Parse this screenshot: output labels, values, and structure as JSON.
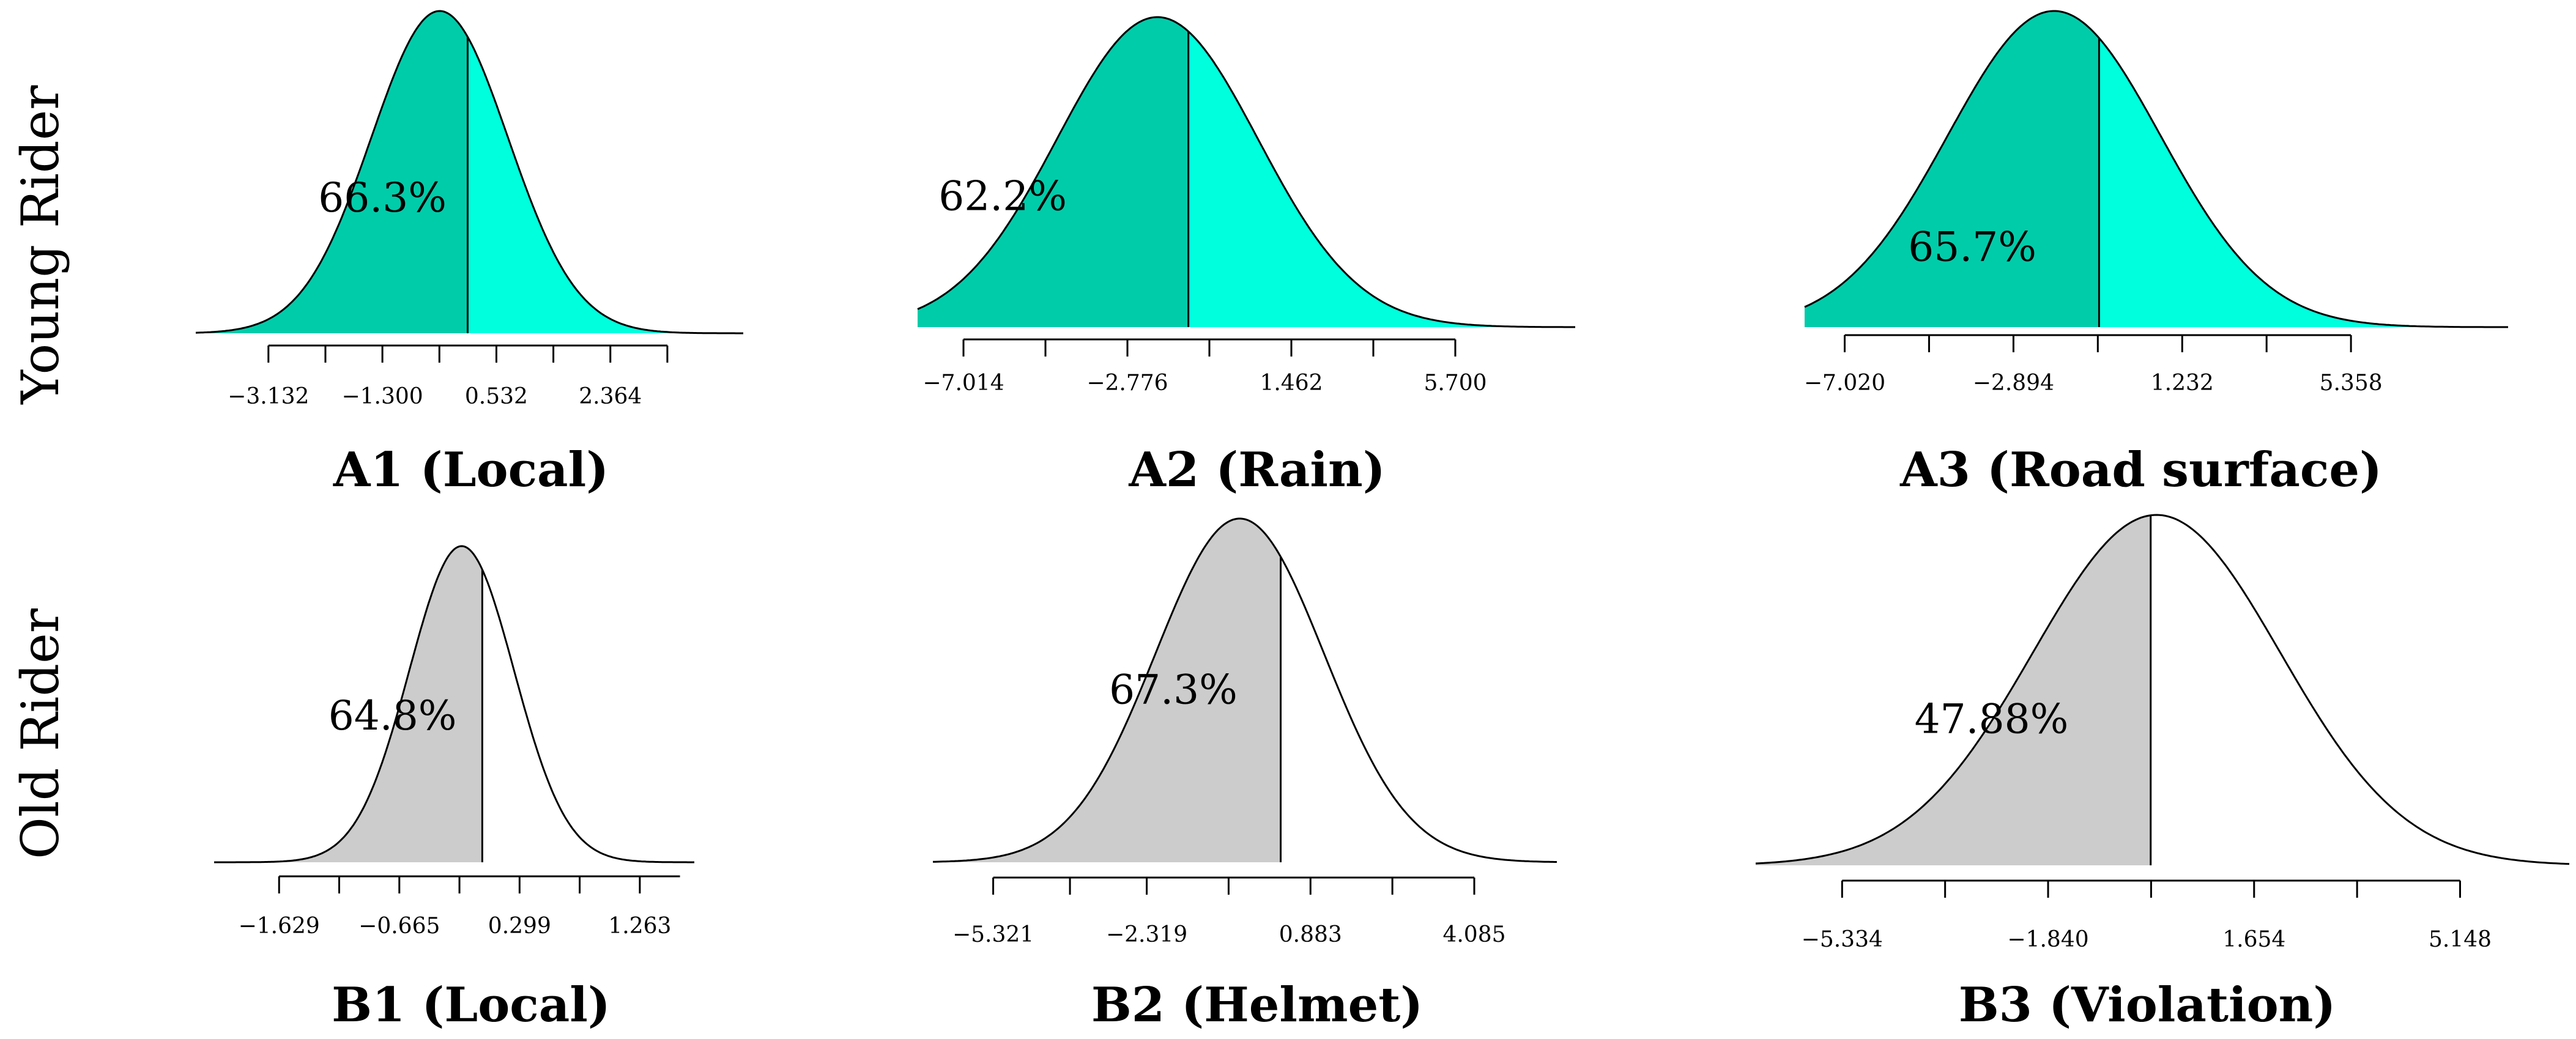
{
  "chart_data": [
    {
      "type": "area",
      "id": "A1",
      "row": "Young Rider",
      "title": "A1 (Local)",
      "distribution": "normal",
      "mean": -0.38,
      "sd": 1.1,
      "xlim": [
        -4.3,
        4.5
      ],
      "axis_range": [
        -3.132,
        3.28
      ],
      "ticks": [
        -3.132,
        -1.3,
        0.532,
        2.364
      ],
      "tick_labels": [
        "−3.132",
        "−1.300",
        "0.532",
        "2.364"
      ],
      "minor_ticks": [
        -2.216,
        -0.384,
        1.448,
        3.28
      ],
      "cutoff": 0.07,
      "shaded_percent": 66.3,
      "shaded_label": "66.3%",
      "label_x": -1.3,
      "label_y_frac": 0.18,
      "theme": "young"
    },
    {
      "type": "area",
      "id": "A2",
      "row": "Young Rider",
      "title": "A2 (Rain)",
      "distribution": "normal",
      "mean": -2.0,
      "sd": 2.6,
      "xlim": [
        -8.2,
        8.8
      ],
      "axis_range": [
        -7.014,
        5.7
      ],
      "ticks": [
        -7.014,
        -2.776,
        1.462,
        5.7
      ],
      "tick_labels": [
        "−7.014",
        "−2.776",
        "1.462",
        "5.700"
      ],
      "minor_ticks": [
        -4.895,
        -0.657,
        3.581
      ],
      "cutoff": -1.2,
      "shaded_percent": 62.2,
      "shaded_label": "62.2%",
      "label_x": -6.0,
      "label_y_frac": 0.18,
      "theme": "young"
    },
    {
      "type": "area",
      "id": "A3",
      "row": "Young Rider",
      "title": "A3 (Road surface)",
      "distribution": "normal",
      "mean": -1.9,
      "sd": 2.6,
      "xlim": [
        -8.0,
        9.2
      ],
      "axis_range": [
        -7.02,
        5.358
      ],
      "ticks": [
        -7.02,
        -2.894,
        1.232,
        5.358
      ],
      "tick_labels": [
        "−7.020",
        "−2.894",
        "1.232",
        "5.358"
      ],
      "minor_ticks": [
        -4.957,
        -0.831,
        3.295
      ],
      "cutoff": -0.8,
      "shaded_percent": 65.7,
      "shaded_label": "65.7%",
      "label_x": -3.9,
      "label_y_frac": 0.1,
      "theme": "young"
    },
    {
      "type": "area",
      "id": "B1",
      "row": "Old Rider",
      "title": "B1 (Local)",
      "distribution": "normal",
      "mean": -0.165,
      "sd": 0.42,
      "xlim": [
        -2.15,
        1.7
      ],
      "axis_range": [
        -1.629,
        1.585
      ],
      "ticks": [
        -1.629,
        -0.665,
        0.299,
        1.263
      ],
      "tick_labels": [
        "−1.629",
        "−0.665",
        "0.299",
        "1.263"
      ],
      "minor_ticks": [
        -1.147,
        -0.183,
        0.781
      ],
      "cutoff": 0.0,
      "shaded_percent": 64.8,
      "shaded_label": "64.8%",
      "label_x": -0.72,
      "label_y_frac": 0.2,
      "theme": "old"
    },
    {
      "type": "area",
      "id": "B2",
      "row": "Old Rider",
      "title": "B2 (Helmet)",
      "distribution": "normal",
      "mean": -0.5,
      "sd": 1.65,
      "xlim": [
        -6.5,
        5.7
      ],
      "axis_range": [
        -5.321,
        4.085
      ],
      "ticks": [
        -5.321,
        -2.319,
        0.883,
        4.085
      ],
      "tick_labels": [
        "−5.321",
        "−2.319",
        "0.883",
        "4.085"
      ],
      "minor_ticks": [
        -3.82,
        -0.718,
        2.484
      ],
      "cutoff": 0.3,
      "shaded_percent": 67.3,
      "shaded_label": "67.3%",
      "label_x": -1.8,
      "label_y_frac": 0.22,
      "theme": "old"
    },
    {
      "type": "area",
      "id": "B3",
      "row": "Old Rider",
      "title": "B3 (Violation)",
      "distribution": "normal",
      "mean": 0.0,
      "sd": 2.1,
      "xlim": [
        -6.8,
        7.0
      ],
      "axis_range": [
        -5.334,
        5.148
      ],
      "ticks": [
        -5.334,
        -1.84,
        1.654,
        5.148
      ],
      "tick_labels": [
        "−5.334",
        "−1.840",
        "1.654",
        "5.148"
      ],
      "minor_ticks": [
        -3.587,
        -0.093,
        3.401
      ],
      "cutoff": -0.1,
      "shaded_percent": 47.88,
      "shaded_label": "47.88%",
      "label_x": -2.8,
      "label_y_frac": 0.18,
      "theme": "old"
    }
  ],
  "row_labels": [
    "Young Rider",
    "Old Rider"
  ],
  "colors": {
    "young_shaded": "#00CCAA",
    "young_unshaded": "#00FFDD",
    "old_shaded": "#CCCCCC",
    "old_unshaded": "#FFFFFF",
    "stroke": "#000000"
  }
}
